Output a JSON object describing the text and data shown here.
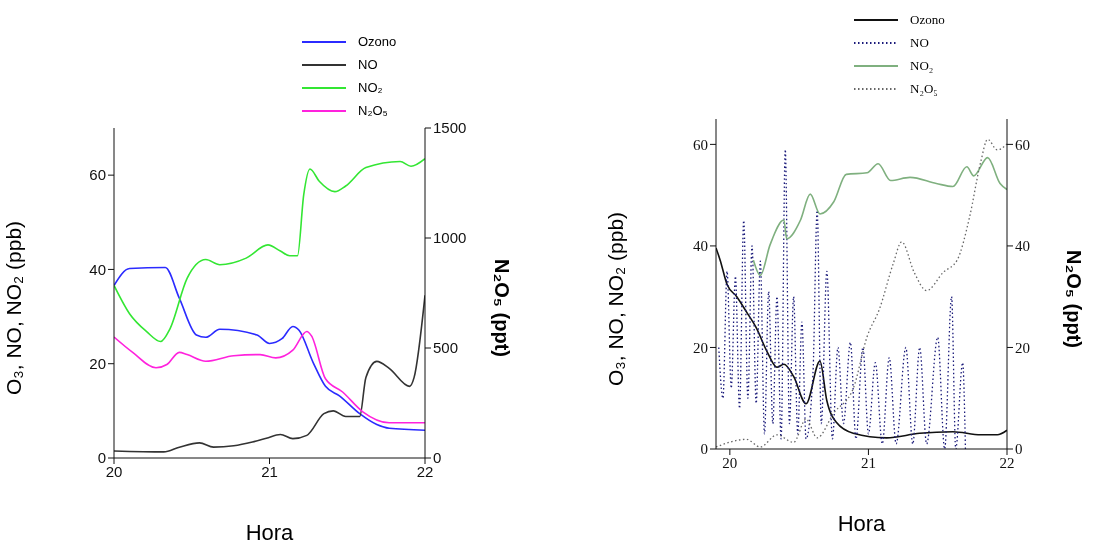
{
  "chart_data": [
    {
      "type": "line",
      "xlabel": "Hora",
      "ylabel": "O₃, NO, NO₂ (ppb)",
      "y2label": "N₂O₅ (ppt)",
      "xlim": [
        20,
        22
      ],
      "xticks": [
        20,
        21,
        22
      ],
      "ylim": [
        0,
        70
      ],
      "yticks": [
        0,
        20,
        40,
        60
      ],
      "y2lim": [
        0,
        1500
      ],
      "y2ticks": [
        0,
        500,
        1000,
        1500
      ],
      "legend": "top right",
      "marker": "none",
      "line_style": "solid",
      "series": [
        {
          "name": "Ozono",
          "color": "#2b2bff",
          "x": [
            20,
            20.1,
            20.33,
            20.42,
            20.53,
            20.59,
            20.68,
            20.92,
            21,
            21.08,
            21.15,
            21.19,
            21.28,
            21.36,
            21.45,
            21.58,
            21.69,
            21.77,
            22
          ],
          "values": [
            36.6,
            40.2,
            40.4,
            33.9,
            26.1,
            25.6,
            27.3,
            26.1,
            24.3,
            25.3,
            27.9,
            27.1,
            20.3,
            15.2,
            13.2,
            9.4,
            7.1,
            6.3,
            5.9
          ]
        },
        {
          "name": "NO",
          "color": "#333333",
          "x": [
            20,
            20.32,
            20.42,
            20.55,
            20.64,
            20.77,
            20.89,
            20.98,
            21.07,
            21.15,
            21.24,
            21.35,
            21.41,
            21.49,
            21.58,
            21.62,
            21.69,
            21.77,
            21.9,
            21.93,
            22
          ],
          "values": [
            1.5,
            1.3,
            2.3,
            3.2,
            2.3,
            2.6,
            3.4,
            4.2,
            5,
            4.1,
            4.8,
            9.4,
            10,
            8.8,
            8.8,
            17.1,
            20.5,
            19,
            15.2,
            17.1,
            34.5
          ]
        },
        {
          "name": "NO₂",
          "color": "#33e633",
          "x": [
            20,
            20.1,
            20.21,
            20.3,
            20.36,
            20.47,
            20.59,
            20.68,
            20.85,
            20.99,
            21.07,
            21.13,
            21.18,
            21.22,
            21.26,
            21.32,
            21.42,
            21.49,
            21.62,
            21.84,
            21.91,
            22
          ],
          "values": [
            36.6,
            30.6,
            26.8,
            24.7,
            27.4,
            38.1,
            42.1,
            41,
            42.4,
            45.2,
            43.9,
            42.9,
            42.9,
            55.8,
            61.3,
            58.7,
            56.5,
            57.7,
            61.6,
            62.9,
            61.9,
            63.5
          ]
        },
        {
          "name": "N₂O₅",
          "color": "#ff22dd",
          "axis": "y2",
          "x": [
            20,
            20.12,
            20.27,
            20.34,
            20.42,
            20.47,
            20.59,
            20.77,
            20.94,
            21.04,
            21.15,
            21.24,
            21.27,
            21.36,
            21.47,
            21.6,
            21.77,
            22
          ],
          "values": [
            550,
            480,
            410,
            425,
            480,
            470,
            440,
            465,
            470,
            455,
            490,
            575,
            555,
            360,
            300,
            210,
            160,
            160
          ]
        }
      ]
    },
    {
      "type": "line",
      "xlabel": "Hora",
      "ylabel": "O₃, NO, NO₂ (ppb)",
      "y2label": "N₂O₅ (ppt)",
      "xlim": [
        19.9,
        22
      ],
      "xticks": [
        20,
        21,
        22
      ],
      "ylim": [
        0,
        65
      ],
      "yticks": [
        0,
        20,
        40,
        60
      ],
      "y2lim": [
        0,
        65
      ],
      "y2ticks": [
        0,
        20,
        40,
        60
      ],
      "legend": "top right",
      "marker": "none",
      "series": [
        {
          "name": "Ozono",
          "color": "#111111",
          "line_style": "solid",
          "x": [
            19.9,
            19.93,
            19.98,
            20.05,
            20.12,
            20.19,
            20.27,
            20.34,
            20.39,
            20.46,
            20.55,
            20.65,
            20.7,
            20.77,
            20.89,
            21.13,
            21.37,
            21.61,
            21.81,
            21.93,
            22
          ],
          "values": [
            39.6,
            37.2,
            32.4,
            30,
            27,
            23.9,
            19.1,
            16.1,
            16.7,
            14.3,
            8.9,
            17.3,
            9.5,
            5.2,
            3.1,
            2.2,
            3.1,
            3.4,
            2.8,
            2.8,
            3.7
          ]
        },
        {
          "name": "NO",
          "color": "#1a1a7a",
          "line_style": "dotted",
          "x": [
            19.92,
            19.95,
            19.98,
            20.01,
            20.04,
            20.07,
            20.1,
            20.13,
            20.16,
            20.19,
            20.22,
            20.25,
            20.28,
            20.31,
            20.34,
            20.37,
            20.4,
            20.43,
            20.46,
            20.49,
            20.52,
            20.55,
            20.6,
            20.63,
            20.66,
            20.7,
            20.74,
            20.78,
            20.82,
            20.87,
            20.91,
            20.96,
            21,
            21.05,
            21.1,
            21.15,
            21.2,
            21.27,
            21.32,
            21.37,
            21.42,
            21.5,
            21.55,
            21.6,
            21.63,
            21.68,
            21.7
          ],
          "values": [
            20,
            10,
            35,
            12,
            34,
            8,
            45,
            10,
            40,
            9,
            37,
            3,
            31,
            5,
            30,
            2,
            59,
            5,
            30,
            3,
            25,
            2,
            15,
            47,
            5,
            35,
            2,
            20,
            5,
            21,
            2,
            20,
            3,
            17,
            1,
            18,
            1,
            20,
            1,
            20,
            1,
            22,
            0,
            30,
            0,
            17,
            0
          ]
        },
        {
          "name": "NO₂",
          "color": "#7fb07f",
          "line_style": "solid",
          "x": [
            20.17,
            20.22,
            20.29,
            20.39,
            20.41,
            20.51,
            20.58,
            20.65,
            20.75,
            20.84,
            20.99,
            21.07,
            21.16,
            21.3,
            21.49,
            21.61,
            21.71,
            21.76,
            21.86,
            21.95,
            22
          ],
          "values": [
            37.2,
            34.2,
            40.2,
            45.1,
            41.4,
            45.1,
            50.2,
            46.3,
            48.7,
            54.1,
            54.4,
            56.2,
            52.9,
            53.5,
            52.3,
            51.7,
            55.6,
            53.8,
            57.4,
            52.3,
            51.1
          ]
        },
        {
          "name": "N₂O₅",
          "color": "#666666",
          "line_style": "dotted",
          "axis": "y2",
          "x": [
            19.9,
            20.12,
            20.22,
            20.34,
            20.46,
            20.55,
            20.63,
            20.75,
            20.89,
            20.99,
            21.08,
            21.18,
            21.24,
            21.33,
            21.42,
            21.54,
            21.64,
            21.73,
            21.81,
            21.86,
            21.93,
            22
          ],
          "values": [
            0.4,
            1.9,
            0.4,
            2.8,
            1.3,
            5.9,
            2.2,
            7.1,
            11.9,
            22.1,
            27.6,
            36.6,
            40.8,
            34.8,
            31.2,
            34.8,
            37.2,
            45.7,
            56.5,
            61,
            58.9,
            60.1
          ]
        }
      ]
    }
  ]
}
